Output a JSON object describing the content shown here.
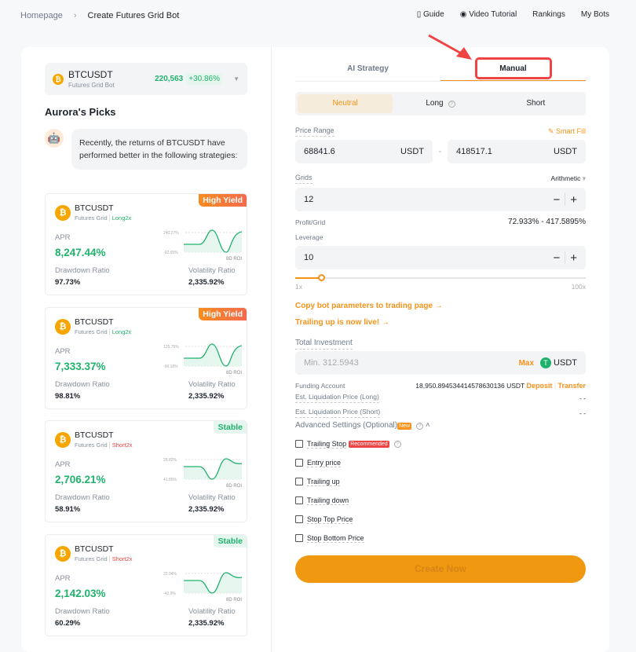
{
  "breadcrumb": {
    "home": "Homepage",
    "current": "Create Futures Grid Bot"
  },
  "nav": {
    "guide": "Guide",
    "video": "Video Tutorial",
    "rankings": "Rankings",
    "mybots": "My Bots"
  },
  "pair": {
    "symbol": "BTCUSDT",
    "type": "Futures Grid Bot",
    "price": "220,563",
    "change": "+30.86%"
  },
  "picks": {
    "title": "Aurora's Picks",
    "message": "Recently, the returns of BTCUSDT have performed better in the following strategies:"
  },
  "cards": [
    {
      "tag": "High Yield",
      "symbol": "BTCUSDT",
      "type": "Futures Grid",
      "mode": "Long2x",
      "apr_label": "APR",
      "apr": "8,247.44%",
      "dd_label": "Drawdown Ratio",
      "dd": "97.73%",
      "vr_label": "Volatility Ratio",
      "vr": "2,335.92%",
      "roi_high": "240.27%",
      "roi_low": "-92.65%",
      "roi_label": "8D ROI"
    },
    {
      "tag": "High Yield",
      "symbol": "BTCUSDT",
      "type": "Futures Grid",
      "mode": "Long2x",
      "apr_label": "APR",
      "apr": "7,333.37%",
      "dd_label": "Drawdown Ratio",
      "dd": "98.81%",
      "vr_label": "Volatility Ratio",
      "vr": "2,335.92%",
      "roi_high": "125.75%",
      "roi_low": "-96.18%",
      "roi_label": "8D ROI"
    },
    {
      "tag": "Stable",
      "symbol": "BTCUSDT",
      "type": "Futures Grid",
      "mode": "Short2x",
      "apr_label": "APR",
      "apr": "2,706.21%",
      "dd_label": "Drawdown Ratio",
      "dd": "58.91%",
      "vr_label": "Volatility Ratio",
      "vr": "2,335.92%",
      "roi_high": "28.82%",
      "roi_low": "41.85%",
      "roi_label": "8D ROI"
    },
    {
      "tag": "Stable",
      "symbol": "BTCUSDT",
      "type": "Futures Grid",
      "mode": "Short2x",
      "apr_label": "APR",
      "apr": "2,142.03%",
      "dd_label": "Drawdown Ratio",
      "dd": "60.29%",
      "vr_label": "Volatility Ratio",
      "vr": "2,335.92%",
      "roi_high": "22.04%",
      "roi_low": "-42.9%",
      "roi_label": "8D ROI"
    }
  ],
  "tabs": {
    "ai": "AI Strategy",
    "manual": "Manual"
  },
  "modes": {
    "neutral": "Neutral",
    "long": "Long",
    "short": "Short"
  },
  "form": {
    "price_range": "Price Range",
    "smart_fill": "Smart Fill",
    "low": "68841.6",
    "high": "418517.1",
    "unit": "USDT",
    "dash": "-",
    "grids": "Grids",
    "grid_type": "Arithmetic",
    "grid_value": "12",
    "profit_label": "Profit/Grid",
    "profit": "72.933% - 417.5895%",
    "leverage": "Leverage",
    "leverage_value": "10",
    "lev_min": "1x",
    "lev_max": "100x",
    "leverage_fraction": 0.09,
    "copy_link": "Copy bot parameters to trading page →",
    "trailing_link": "Trailing up is now live! →",
    "investment": "Total Investment",
    "investment_placeholder": "Min. 312.5943",
    "max": "Max",
    "currency": "USDT",
    "funding_label": "Funding Account",
    "funding": "18,950.894534414578630136 USDT",
    "deposit": "Deposit",
    "transfer": "Transfer",
    "liq_long": "Est. Liquidation Price (Long)",
    "liq_long_val": "- -",
    "liq_short": "Est. Liquidation Price (Short)",
    "liq_short_val": "- -",
    "advanced": "Advanced Settings (Optional)",
    "new_badge": "New",
    "options": [
      "Trailing Stop",
      "Entry price",
      "Trailing up",
      "Trailing down",
      "Stop Top Price",
      "Stop Bottom Price"
    ],
    "recommended": "Recommended",
    "create": "Create Now"
  },
  "colors": {
    "accent": "#f7931a",
    "green": "#20b26c",
    "highlight": "#ef4444"
  }
}
